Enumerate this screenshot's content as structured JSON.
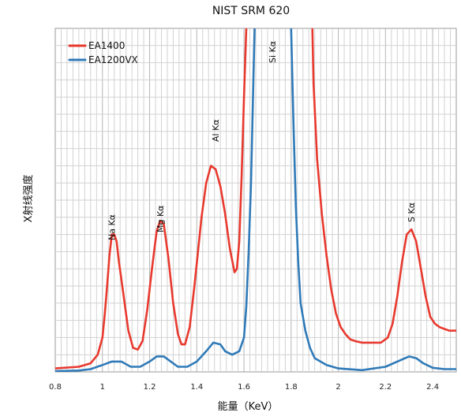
{
  "chart_data": {
    "type": "line",
    "title": "NIST SRM 620",
    "xlabel": "能量（KeV）",
    "ylabel": "X射线强度",
    "xlim": [
      0.8,
      2.5
    ],
    "ylim": [
      0,
      100
    ],
    "x_ticks": [
      0.8,
      1,
      1.2,
      1.4,
      1.6,
      1.8,
      2,
      2.2,
      2.4
    ],
    "x_tick_labels": [
      "0.8",
      "1",
      "1.2",
      "1.4",
      "1.6",
      "1.8",
      "2",
      "2.2",
      "2.4"
    ],
    "grid": true,
    "legend_position": "top-left",
    "series": [
      {
        "name": "EA1400",
        "color": "#e8392e",
        "points": [
          [
            0.8,
            1.0
          ],
          [
            0.9,
            1.5
          ],
          [
            0.95,
            2.5
          ],
          [
            0.98,
            5
          ],
          [
            1.0,
            10
          ],
          [
            1.01,
            17
          ],
          [
            1.02,
            25
          ],
          [
            1.03,
            34
          ],
          [
            1.04,
            40
          ],
          [
            1.05,
            40
          ],
          [
            1.06,
            38
          ],
          [
            1.07,
            32
          ],
          [
            1.09,
            22
          ],
          [
            1.11,
            12
          ],
          [
            1.13,
            7
          ],
          [
            1.15,
            6.5
          ],
          [
            1.17,
            9
          ],
          [
            1.19,
            18
          ],
          [
            1.21,
            30
          ],
          [
            1.23,
            41
          ],
          [
            1.245,
            44
          ],
          [
            1.26,
            43
          ],
          [
            1.28,
            33
          ],
          [
            1.3,
            20
          ],
          [
            1.32,
            11
          ],
          [
            1.335,
            8
          ],
          [
            1.35,
            8
          ],
          [
            1.37,
            13
          ],
          [
            1.39,
            25
          ],
          [
            1.42,
            45
          ],
          [
            1.44,
            55
          ],
          [
            1.46,
            60
          ],
          [
            1.48,
            59
          ],
          [
            1.5,
            54
          ],
          [
            1.52,
            46
          ],
          [
            1.54,
            36
          ],
          [
            1.56,
            29
          ],
          [
            1.57,
            30
          ],
          [
            1.58,
            38
          ],
          [
            1.59,
            57
          ],
          [
            1.6,
            80
          ],
          [
            1.61,
            100
          ]
        ]
      },
      {
        "name": "EA1400",
        "color": "#e8392e",
        "points": [
          [
            1.89,
            100
          ],
          [
            1.895,
            84
          ],
          [
            1.91,
            62
          ],
          [
            1.93,
            46
          ],
          [
            1.95,
            34
          ],
          [
            1.97,
            24
          ],
          [
            1.99,
            17
          ],
          [
            2.01,
            13
          ],
          [
            2.03,
            11
          ],
          [
            2.05,
            9.5
          ],
          [
            2.07,
            9
          ],
          [
            2.1,
            8.5
          ],
          [
            2.15,
            8.5
          ],
          [
            2.18,
            8.5
          ],
          [
            2.21,
            10
          ],
          [
            2.23,
            14
          ],
          [
            2.25,
            22
          ],
          [
            2.27,
            32
          ],
          [
            2.29,
            40
          ],
          [
            2.31,
            41.5
          ],
          [
            2.33,
            38
          ],
          [
            2.35,
            30
          ],
          [
            2.37,
            22
          ],
          [
            2.39,
            16
          ],
          [
            2.41,
            14
          ],
          [
            2.43,
            13
          ],
          [
            2.45,
            12.5
          ],
          [
            2.47,
            12
          ],
          [
            2.49,
            12
          ],
          [
            2.5,
            12
          ]
        ]
      },
      {
        "name": "EA1200VX",
        "color": "#2f7ab8",
        "points": [
          [
            0.8,
            0.2
          ],
          [
            0.9,
            0.4
          ],
          [
            0.95,
            0.8
          ],
          [
            1.0,
            2
          ],
          [
            1.04,
            3
          ],
          [
            1.08,
            3
          ],
          [
            1.12,
            1.5
          ],
          [
            1.16,
            1.5
          ],
          [
            1.2,
            3
          ],
          [
            1.23,
            4.5
          ],
          [
            1.26,
            4.5
          ],
          [
            1.29,
            3
          ],
          [
            1.32,
            1.5
          ],
          [
            1.36,
            1.5
          ],
          [
            1.4,
            3
          ],
          [
            1.44,
            6
          ],
          [
            1.47,
            8.5
          ],
          [
            1.5,
            8
          ],
          [
            1.52,
            6
          ],
          [
            1.55,
            5
          ],
          [
            1.58,
            6
          ],
          [
            1.6,
            10
          ],
          [
            1.61,
            19
          ],
          [
            1.62,
            35
          ],
          [
            1.63,
            55
          ],
          [
            1.635,
            70
          ],
          [
            1.645,
            100
          ]
        ]
      },
      {
        "name": "EA1200VX",
        "color": "#2f7ab8",
        "points": [
          [
            1.8,
            100
          ],
          [
            1.81,
            72
          ],
          [
            1.82,
            48
          ],
          [
            1.83,
            32
          ],
          [
            1.84,
            20
          ],
          [
            1.86,
            12
          ],
          [
            1.88,
            7
          ],
          [
            1.9,
            4
          ],
          [
            1.95,
            2
          ],
          [
            2.0,
            1
          ],
          [
            2.1,
            0.5
          ],
          [
            2.2,
            1.5
          ],
          [
            2.25,
            3
          ],
          [
            2.3,
            4.5
          ],
          [
            2.33,
            4
          ],
          [
            2.36,
            2.5
          ],
          [
            2.4,
            1.2
          ],
          [
            2.45,
            0.8
          ],
          [
            2.5,
            0.8
          ]
        ]
      }
    ],
    "legend": [
      {
        "name": "EA1400",
        "color": "#e8392e"
      },
      {
        "name": "EA1200VX",
        "color": "#2f7ab8"
      }
    ],
    "annotations": [
      {
        "text": "Na Kα",
        "x": 1.04
      },
      {
        "text": "Mg Kα",
        "x": 1.245
      },
      {
        "text": "Al Kα",
        "x": 1.48
      },
      {
        "text": "Si Kα",
        "x": 1.72
      },
      {
        "text": "S Kα",
        "x": 2.31
      }
    ]
  }
}
